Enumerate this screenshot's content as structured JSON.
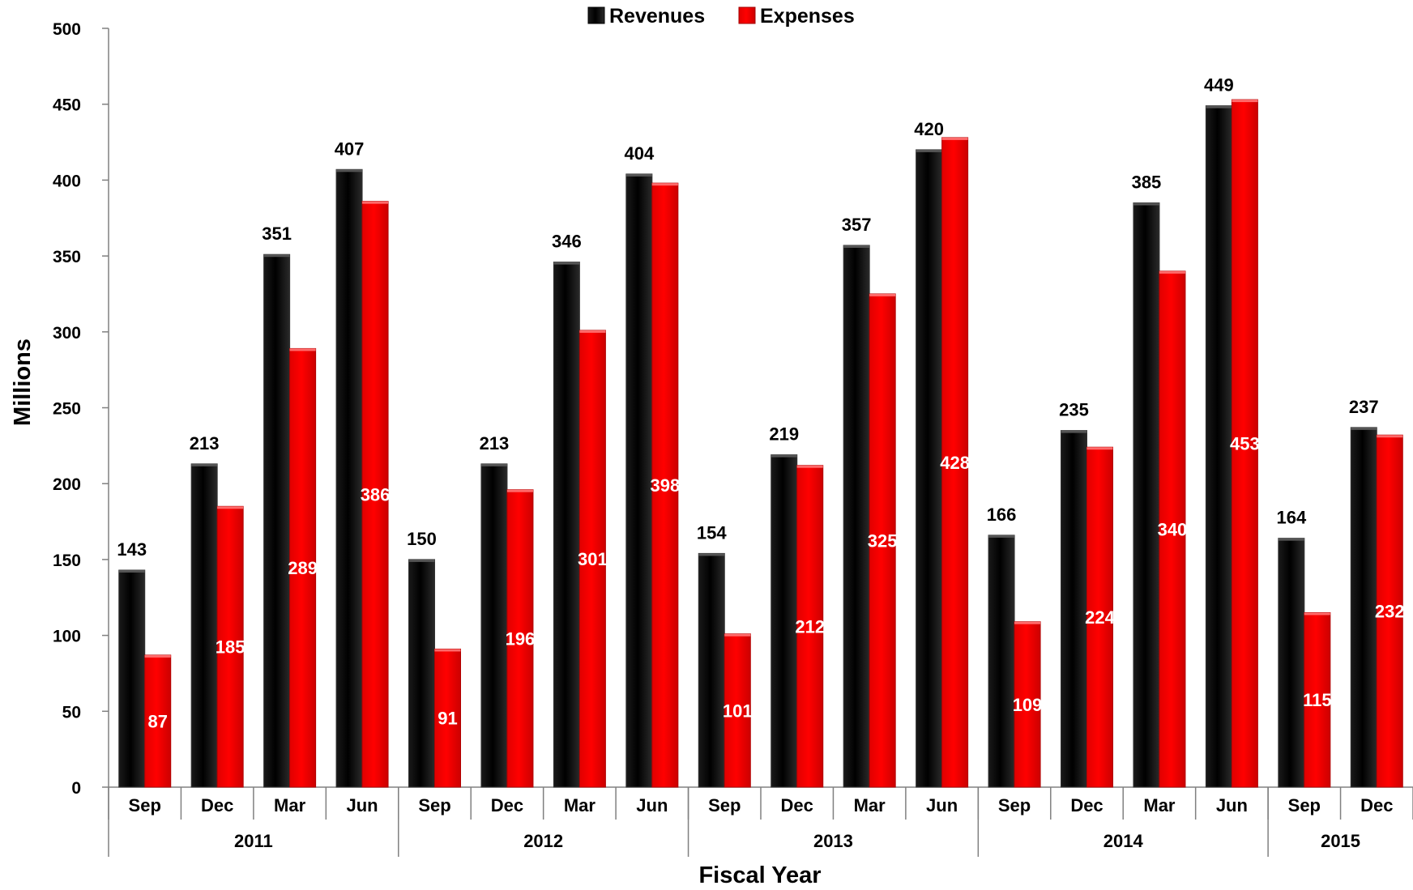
{
  "chart_data": {
    "type": "bar",
    "title": "",
    "xlabel": "Fiscal Year",
    "ylabel": "Millions",
    "ylim": [
      0,
      500
    ],
    "yticks": [
      0,
      50,
      100,
      150,
      200,
      250,
      300,
      350,
      400,
      450,
      500
    ],
    "legend_position": "top-center",
    "grid": false,
    "categories": [
      "Sep",
      "Dec",
      "Mar",
      "Jun",
      "Sep",
      "Dec",
      "Mar",
      "Jun",
      "Sep",
      "Dec",
      "Mar",
      "Jun",
      "Sep",
      "Dec",
      "Mar",
      "Jun",
      "Sep",
      "Dec"
    ],
    "groups": [
      {
        "label": "2011",
        "count": 4
      },
      {
        "label": "2012",
        "count": 4
      },
      {
        "label": "2013",
        "count": 4
      },
      {
        "label": "2014",
        "count": 4
      },
      {
        "label": "2015",
        "count": 2
      }
    ],
    "series": [
      {
        "name": "Revenues",
        "color": "#000000",
        "label_color": "#000000",
        "values": [
          143,
          213,
          351,
          407,
          150,
          213,
          346,
          404,
          154,
          219,
          357,
          420,
          166,
          235,
          385,
          449,
          164,
          237
        ]
      },
      {
        "name": "Expenses",
        "color": "#ff0000",
        "label_color": "#ffffff",
        "values": [
          87,
          185,
          289,
          386,
          91,
          196,
          301,
          398,
          101,
          212,
          325,
          428,
          109,
          224,
          340,
          453,
          115,
          232
        ]
      }
    ]
  }
}
